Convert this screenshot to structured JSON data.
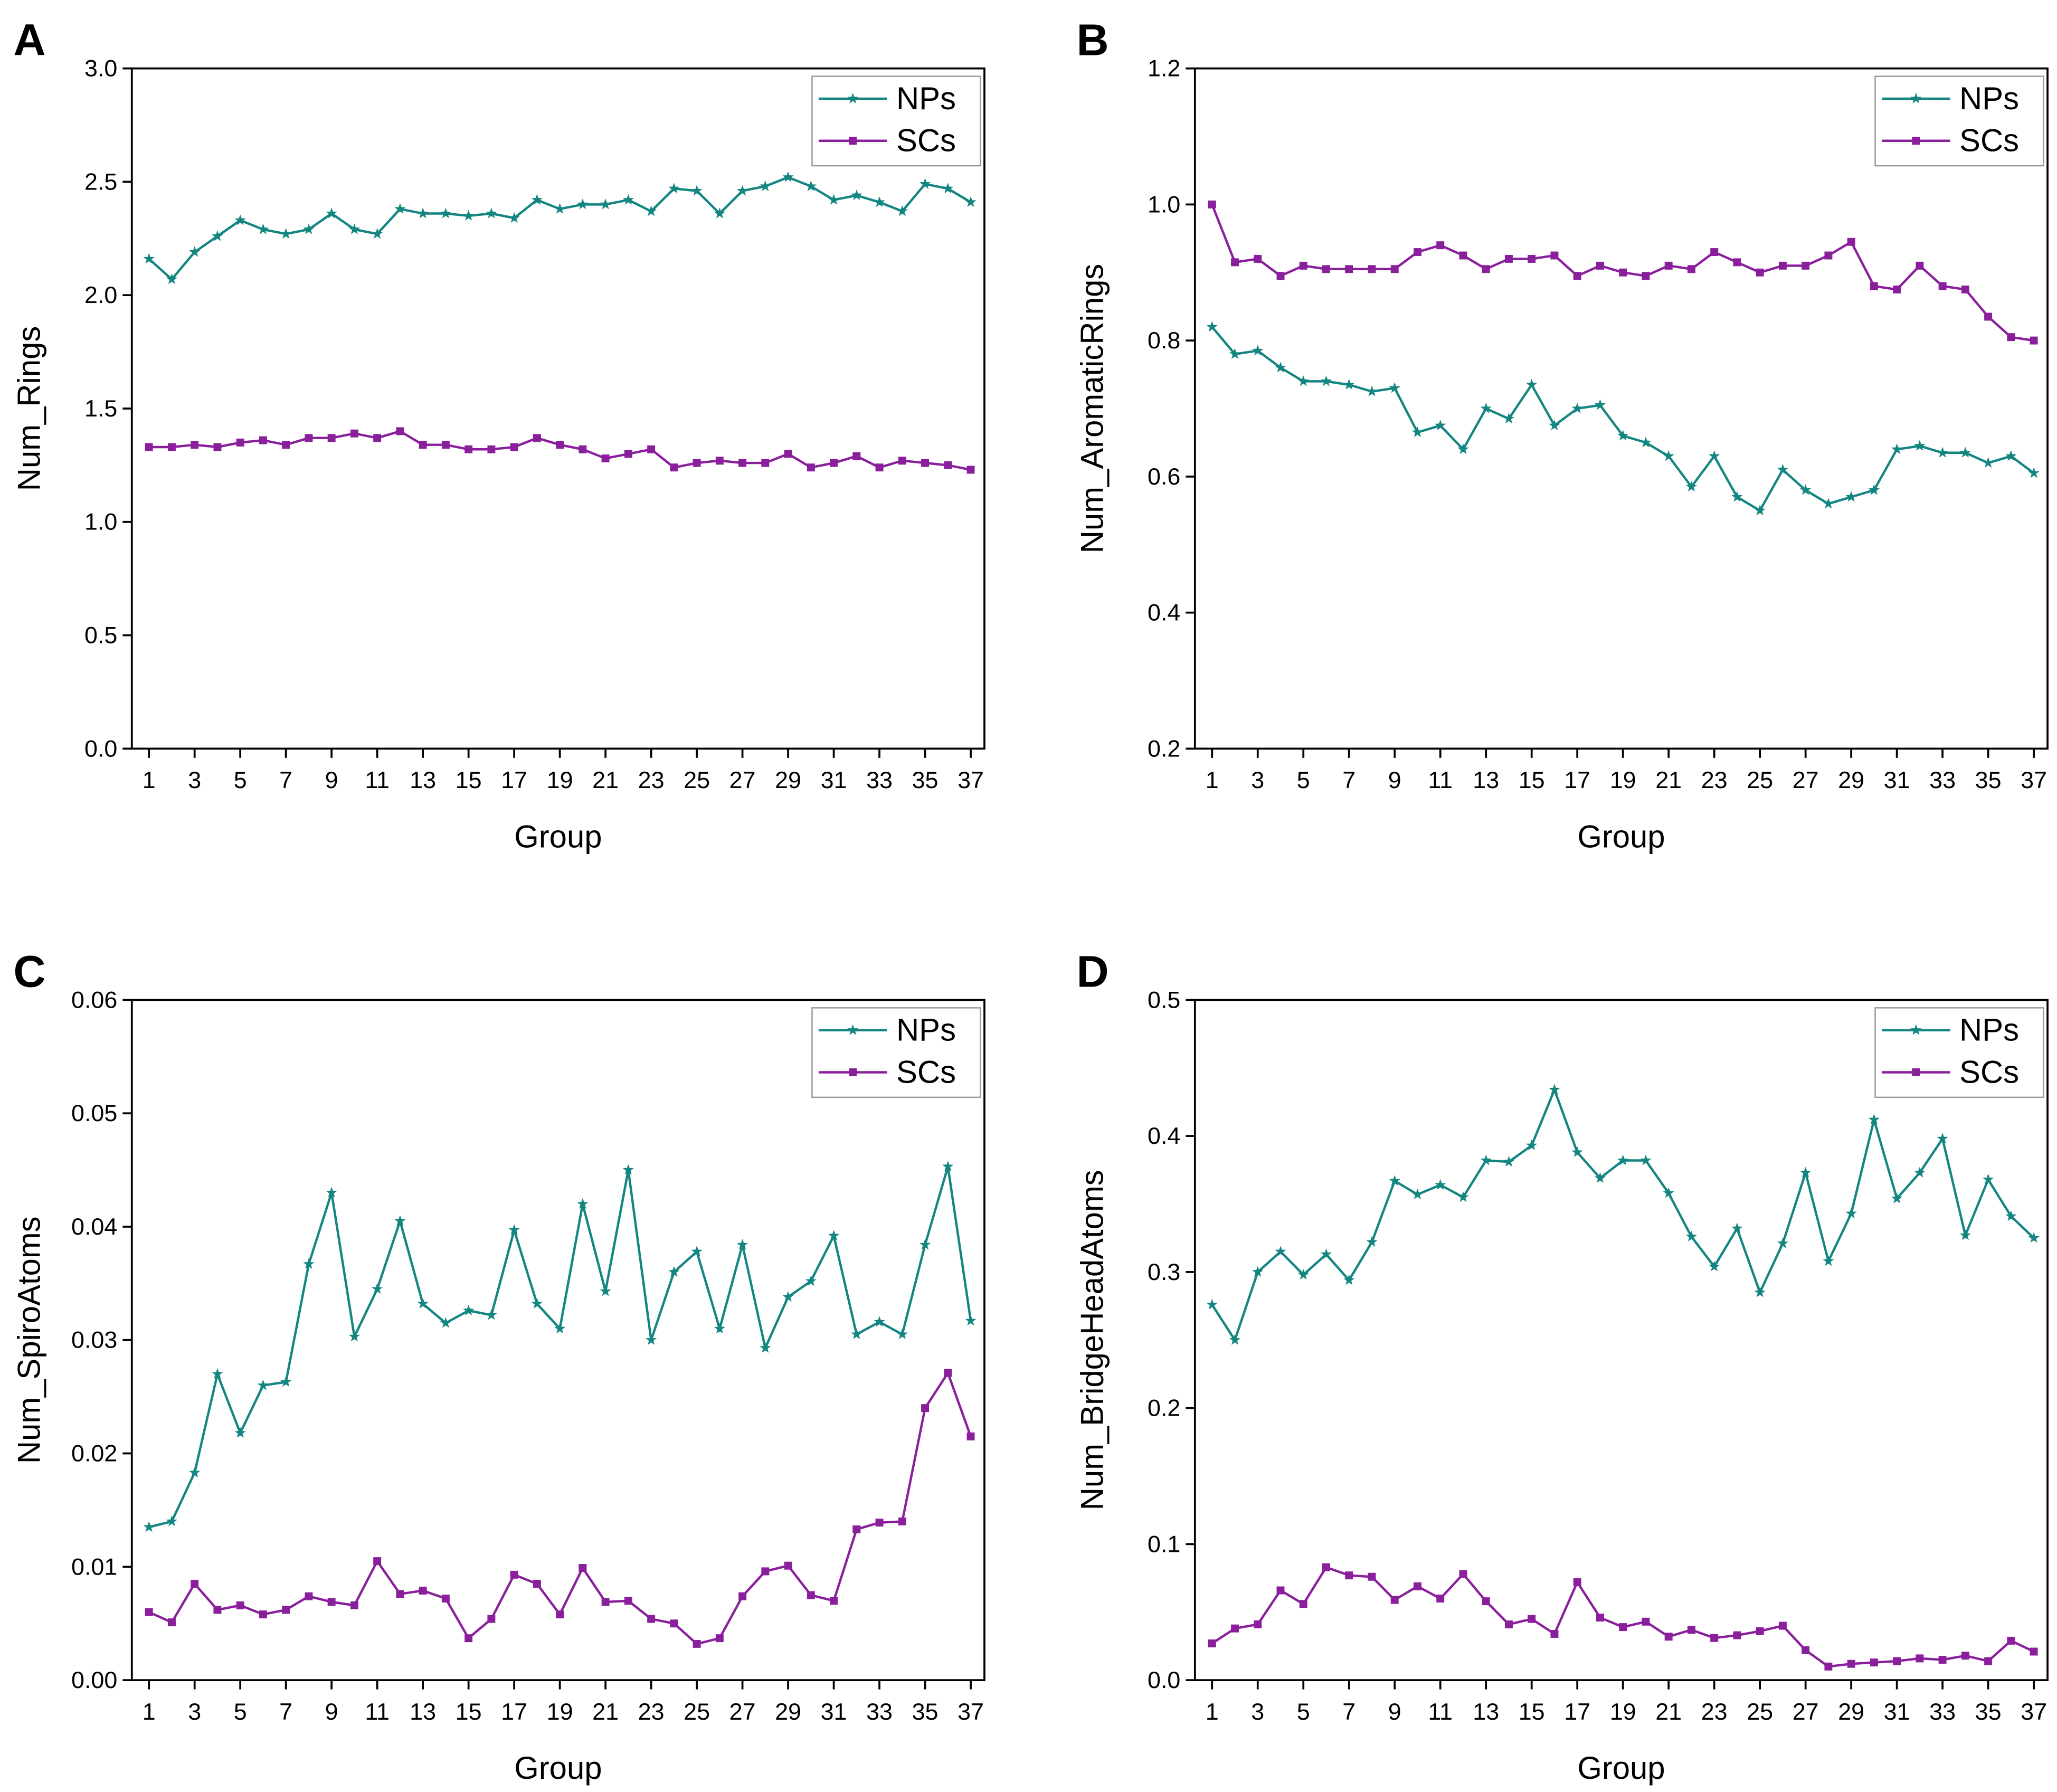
{
  "chart_data": [
    {
      "type": "line",
      "panel": "A",
      "xlabel": "Group",
      "ylabel": "Num_Rings",
      "x": [
        1,
        2,
        3,
        4,
        5,
        6,
        7,
        8,
        9,
        10,
        11,
        12,
        13,
        14,
        15,
        16,
        17,
        18,
        19,
        20,
        21,
        22,
        23,
        24,
        25,
        26,
        27,
        28,
        29,
        30,
        31,
        32,
        33,
        34,
        35,
        36,
        37
      ],
      "xlim": [
        0.25,
        37.6
      ],
      "xticks": [
        1,
        3,
        5,
        7,
        9,
        11,
        13,
        15,
        17,
        19,
        21,
        23,
        25,
        27,
        29,
        31,
        33,
        35,
        37
      ],
      "ylim": [
        0,
        3
      ],
      "yticks": [
        {
          "value": 0,
          "label": "0.0"
        },
        0.5,
        {
          "value": 1,
          "label": "1.0"
        },
        1.5,
        {
          "value": 2,
          "label": "2.0"
        },
        2.5,
        {
          "value": 3,
          "label": "3.0"
        }
      ],
      "legend": "upper right",
      "series": [
        {
          "name": "NPs",
          "color": "#148682",
          "marker": "star",
          "values": [
            2.16,
            2.07,
            2.19,
            2.26,
            2.33,
            2.29,
            2.27,
            2.29,
            2.36,
            2.29,
            2.27,
            2.38,
            2.36,
            2.36,
            2.35,
            2.36,
            2.34,
            2.42,
            2.38,
            2.4,
            2.4,
            2.42,
            2.37,
            2.47,
            2.46,
            2.36,
            2.46,
            2.48,
            2.52,
            2.48,
            2.42,
            2.44,
            2.41,
            2.37,
            2.49,
            2.47,
            2.41
          ]
        },
        {
          "name": "SCs",
          "color": "#8a1f9c",
          "marker": "square",
          "values": [
            1.33,
            1.33,
            1.34,
            1.33,
            1.35,
            1.36,
            1.34,
            1.37,
            1.37,
            1.39,
            1.37,
            1.4,
            1.34,
            1.34,
            1.32,
            1.32,
            1.33,
            1.37,
            1.34,
            1.32,
            1.28,
            1.3,
            1.32,
            1.24,
            1.26,
            1.27,
            1.26,
            1.26,
            1.3,
            1.24,
            1.26,
            1.29,
            1.24,
            1.27,
            1.26,
            1.25,
            1.23
          ]
        }
      ]
    },
    {
      "type": "line",
      "panel": "B",
      "xlabel": "Group",
      "ylabel": "Num_AromaticRings",
      "x": [
        1,
        2,
        3,
        4,
        5,
        6,
        7,
        8,
        9,
        10,
        11,
        12,
        13,
        14,
        15,
        16,
        17,
        18,
        19,
        20,
        21,
        22,
        23,
        24,
        25,
        26,
        27,
        28,
        29,
        30,
        31,
        32,
        33,
        34,
        35,
        36,
        37
      ],
      "xlim": [
        0.25,
        37.6
      ],
      "xticks": [
        1,
        3,
        5,
        7,
        9,
        11,
        13,
        15,
        17,
        19,
        21,
        23,
        25,
        27,
        29,
        31,
        33,
        35,
        37
      ],
      "ylim": [
        0.2,
        1.2
      ],
      "yticks": [
        0.2,
        0.4,
        0.6,
        0.8,
        {
          "value": 1,
          "label": "1.0"
        },
        1.2
      ],
      "legend": "upper right",
      "series": [
        {
          "name": "NPs",
          "color": "#148682",
          "marker": "star",
          "values": [
            0.82,
            0.78,
            0.785,
            0.76,
            0.74,
            0.74,
            0.735,
            0.725,
            0.73,
            0.665,
            0.675,
            0.64,
            0.7,
            0.685,
            0.735,
            0.675,
            0.7,
            0.705,
            0.66,
            0.65,
            0.63,
            0.585,
            0.63,
            0.57,
            0.55,
            0.61,
            0.58,
            0.56,
            0.57,
            0.58,
            0.64,
            0.645,
            0.635,
            0.635,
            0.62,
            0.63,
            0.605
          ]
        },
        {
          "name": "SCs",
          "color": "#8a1f9c",
          "marker": "square",
          "values": [
            1.0,
            0.915,
            0.92,
            0.895,
            0.91,
            0.905,
            0.905,
            0.905,
            0.905,
            0.93,
            0.94,
            0.925,
            0.905,
            0.92,
            0.92,
            0.925,
            0.895,
            0.91,
            0.9,
            0.895,
            0.91,
            0.905,
            0.93,
            0.915,
            0.9,
            0.91,
            0.91,
            0.925,
            0.945,
            0.88,
            0.875,
            0.91,
            0.88,
            0.875,
            0.835,
            0.805,
            0.8
          ]
        }
      ]
    },
    {
      "type": "line",
      "panel": "C",
      "xlabel": "Group",
      "ylabel": "Num_SpiroAtoms",
      "x": [
        1,
        2,
        3,
        4,
        5,
        6,
        7,
        8,
        9,
        10,
        11,
        12,
        13,
        14,
        15,
        16,
        17,
        18,
        19,
        20,
        21,
        22,
        23,
        24,
        25,
        26,
        27,
        28,
        29,
        30,
        31,
        32,
        33,
        34,
        35,
        36,
        37
      ],
      "xlim": [
        0.25,
        37.6
      ],
      "xticks": [
        1,
        3,
        5,
        7,
        9,
        11,
        13,
        15,
        17,
        19,
        21,
        23,
        25,
        27,
        29,
        31,
        33,
        35,
        37
      ],
      "ylim": [
        0,
        0.06
      ],
      "yticks": [
        {
          "value": 0,
          "label": "0.00"
        },
        0.01,
        0.02,
        0.03,
        0.04,
        0.05,
        0.06
      ],
      "legend": "upper right",
      "series": [
        {
          "name": "NPs",
          "color": "#148682",
          "marker": "star",
          "values": [
            0.0135,
            0.014,
            0.0183,
            0.027,
            0.0218,
            0.026,
            0.0263,
            0.0367,
            0.043,
            0.0303,
            0.0345,
            0.0405,
            0.0332,
            0.0315,
            0.0326,
            0.0322,
            0.0397,
            0.0332,
            0.031,
            0.042,
            0.0343,
            0.045,
            0.03,
            0.036,
            0.0378,
            0.031,
            0.0384,
            0.0293,
            0.0338,
            0.0352,
            0.0392,
            0.0305,
            0.0316,
            0.0305,
            0.0384,
            0.0453,
            0.0317
          ]
        },
        {
          "name": "SCs",
          "color": "#8a1f9c",
          "marker": "square",
          "values": [
            0.006,
            0.0051,
            0.0085,
            0.0062,
            0.0066,
            0.0058,
            0.0062,
            0.0074,
            0.0069,
            0.0066,
            0.0105,
            0.0076,
            0.0079,
            0.0072,
            0.0037,
            0.0054,
            0.0093,
            0.0085,
            0.0058,
            0.0099,
            0.0069,
            0.007,
            0.0054,
            0.005,
            0.0032,
            0.0037,
            0.0074,
            0.0096,
            0.0101,
            0.0075,
            0.007,
            0.0133,
            0.0139,
            0.014,
            0.024,
            0.0271,
            0.0215
          ]
        }
      ]
    },
    {
      "type": "line",
      "panel": "D",
      "xlabel": "Group",
      "ylabel": "Num_BridgeHeadAtoms",
      "x": [
        1,
        2,
        3,
        4,
        5,
        6,
        7,
        8,
        9,
        10,
        11,
        12,
        13,
        14,
        15,
        16,
        17,
        18,
        19,
        20,
        21,
        22,
        23,
        24,
        25,
        26,
        27,
        28,
        29,
        30,
        31,
        32,
        33,
        34,
        35,
        36,
        37
      ],
      "xlim": [
        0.25,
        37.6
      ],
      "xticks": [
        1,
        3,
        5,
        7,
        9,
        11,
        13,
        15,
        17,
        19,
        21,
        23,
        25,
        27,
        29,
        31,
        33,
        35,
        37
      ],
      "ylim": [
        0,
        0.5
      ],
      "yticks": [
        {
          "value": 0,
          "label": "0.0"
        },
        0.1,
        0.2,
        0.3,
        0.4,
        0.5
      ],
      "legend": "upper right",
      "series": [
        {
          "name": "NPs",
          "color": "#148682",
          "marker": "star",
          "values": [
            0.276,
            0.25,
            0.3,
            0.315,
            0.298,
            0.313,
            0.294,
            0.322,
            0.367,
            0.357,
            0.364,
            0.355,
            0.382,
            0.381,
            0.393,
            0.434,
            0.388,
            0.369,
            0.382,
            0.382,
            0.358,
            0.326,
            0.304,
            0.332,
            0.285,
            0.321,
            0.373,
            0.308,
            0.343,
            0.412,
            0.354,
            0.373,
            0.398,
            0.327,
            0.368,
            0.341,
            0.325
          ]
        },
        {
          "name": "SCs",
          "color": "#8a1f9c",
          "marker": "square",
          "values": [
            0.027,
            0.038,
            0.041,
            0.066,
            0.056,
            0.083,
            0.077,
            0.076,
            0.059,
            0.069,
            0.06,
            0.078,
            0.058,
            0.041,
            0.045,
            0.034,
            0.072,
            0.046,
            0.039,
            0.043,
            0.032,
            0.037,
            0.031,
            0.033,
            0.036,
            0.04,
            0.022,
            0.01,
            0.012,
            0.013,
            0.014,
            0.016,
            0.015,
            0.018,
            0.014,
            0.029,
            0.021
          ]
        }
      ]
    }
  ]
}
